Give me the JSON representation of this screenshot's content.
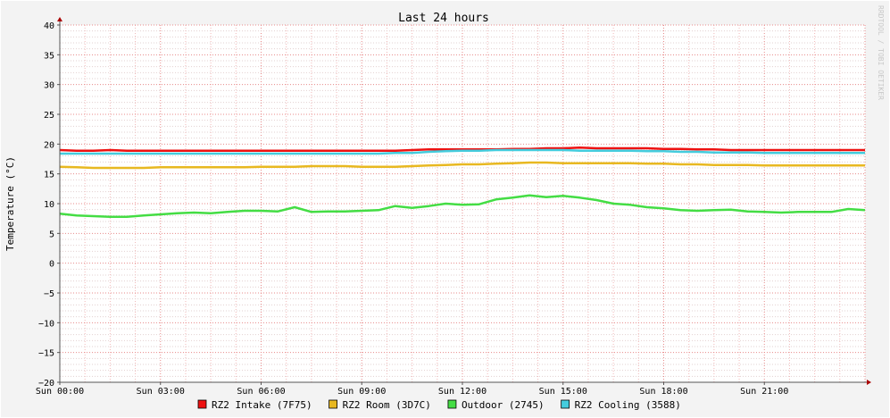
{
  "chart_data": {
    "type": "line",
    "title": "Last 24 hours",
    "ylabel": "Temperature (°C)",
    "xlabel": "",
    "watermark": "RRDTOOL / TOBI OETIKER",
    "ylim": [
      -20,
      40
    ],
    "y_ticks": [
      40,
      35,
      30,
      25,
      20,
      15,
      10,
      5,
      0,
      -5,
      -10,
      -15,
      -20
    ],
    "y_tick_labels": [
      "40",
      "35",
      "30",
      "25",
      "20",
      "15",
      "10",
      "5",
      "0",
      "−5",
      "−10",
      "−15",
      "−20"
    ],
    "x_range_hours": [
      0,
      24
    ],
    "x_ticks": [
      0,
      3,
      6,
      9,
      12,
      15,
      18,
      21
    ],
    "x_tick_labels": [
      "Sun 00:00",
      "Sun 03:00",
      "Sun 06:00",
      "Sun 09:00",
      "Sun 12:00",
      "Sun 15:00",
      "Sun 18:00",
      "Sun 21:00"
    ],
    "grid": true,
    "legend_position": "bottom",
    "x_hours": [
      0,
      0.5,
      1,
      1.5,
      2,
      2.5,
      3,
      3.5,
      4,
      4.5,
      5,
      5.5,
      6,
      6.5,
      7,
      7.5,
      8,
      8.5,
      9,
      9.5,
      10,
      10.5,
      11,
      11.5,
      12,
      12.5,
      13,
      13.5,
      14,
      14.5,
      15,
      15.5,
      16,
      16.5,
      17,
      17.5,
      18,
      18.5,
      19,
      19.5,
      20,
      20.5,
      21,
      21.5,
      22,
      22.5,
      23,
      23.5,
      24
    ],
    "series": [
      {
        "name": "RZ2 Intake (7F75)",
        "color": "#ee1111",
        "values": [
          19.0,
          18.9,
          18.9,
          19.0,
          18.9,
          18.9,
          18.9,
          18.9,
          18.9,
          18.9,
          18.9,
          18.9,
          18.9,
          18.9,
          18.9,
          18.9,
          18.9,
          18.9,
          18.9,
          18.9,
          18.9,
          19.0,
          19.1,
          19.1,
          19.1,
          19.1,
          19.1,
          19.2,
          19.2,
          19.3,
          19.3,
          19.4,
          19.3,
          19.3,
          19.3,
          19.3,
          19.2,
          19.2,
          19.1,
          19.1,
          19.0,
          19.0,
          19.0,
          19.0,
          19.0,
          19.0,
          19.0,
          19.0,
          19.0
        ]
      },
      {
        "name": "RZ2 Room (3D7C)",
        "color": "#e8b820",
        "values": [
          16.2,
          16.1,
          16.0,
          16.0,
          16.0,
          16.0,
          16.1,
          16.1,
          16.1,
          16.1,
          16.1,
          16.1,
          16.2,
          16.2,
          16.2,
          16.3,
          16.3,
          16.3,
          16.2,
          16.2,
          16.2,
          16.3,
          16.4,
          16.5,
          16.6,
          16.6,
          16.7,
          16.8,
          16.9,
          16.9,
          16.8,
          16.8,
          16.8,
          16.8,
          16.8,
          16.7,
          16.7,
          16.6,
          16.6,
          16.5,
          16.5,
          16.5,
          16.4,
          16.4,
          16.4,
          16.4,
          16.4,
          16.4,
          16.4
        ]
      },
      {
        "name": "Outdoor (2745)",
        "color": "#44dd44",
        "values": [
          8.3,
          8.0,
          7.9,
          7.8,
          7.8,
          8.0,
          8.2,
          8.4,
          8.5,
          8.4,
          8.6,
          8.8,
          8.8,
          8.7,
          9.4,
          8.6,
          8.7,
          8.7,
          8.8,
          8.9,
          9.6,
          9.3,
          9.6,
          10.0,
          9.8,
          9.9,
          10.7,
          11.0,
          11.4,
          11.1,
          11.3,
          11.0,
          10.6,
          10.0,
          9.8,
          9.4,
          9.2,
          8.9,
          8.8,
          8.9,
          9.0,
          8.7,
          8.6,
          8.5,
          8.6,
          8.6,
          8.6,
          9.1,
          8.9
        ]
      },
      {
        "name": "RZ2 Cooling (3588)",
        "color": "#44ccdd",
        "values": [
          18.4,
          18.4,
          18.4,
          18.4,
          18.4,
          18.4,
          18.4,
          18.4,
          18.4,
          18.4,
          18.4,
          18.4,
          18.4,
          18.4,
          18.4,
          18.4,
          18.4,
          18.4,
          18.4,
          18.4,
          18.5,
          18.5,
          18.7,
          18.8,
          18.9,
          18.9,
          19.0,
          19.0,
          19.0,
          19.0,
          19.0,
          18.9,
          18.9,
          18.9,
          18.9,
          18.8,
          18.8,
          18.7,
          18.7,
          18.6,
          18.6,
          18.6,
          18.5,
          18.5,
          18.5,
          18.5,
          18.5,
          18.5,
          18.5
        ]
      }
    ]
  }
}
